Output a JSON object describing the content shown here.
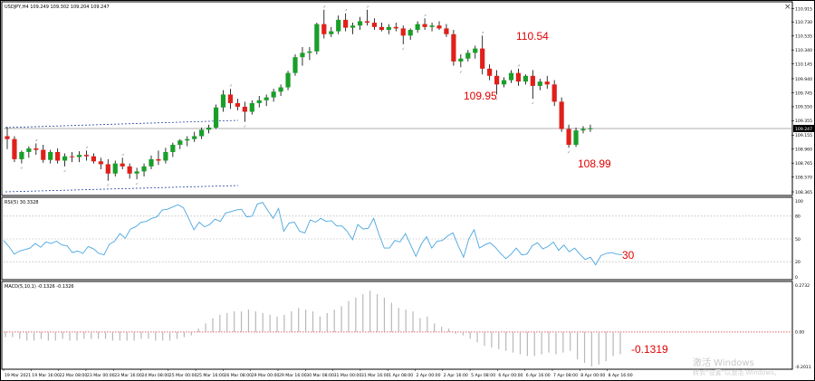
{
  "window": {
    "symbol_header": "USDJPY,H4  109.249 109.302 109.204 109.247",
    "close_button": "×"
  },
  "colors": {
    "bull": "#1a9e2a",
    "bear": "#e0201a",
    "wick": "#000000",
    "rsi_line": "#4aa6e0",
    "macd_hist": "#b8b8b8",
    "macd_signal": "#e03030",
    "annotation": "#e00000",
    "channel": "#2040a0",
    "price_line": "#909090",
    "level_dots": "#a0a0a0"
  },
  "chart_data": [
    {
      "type": "candlestick",
      "title": "USDJPY,H4",
      "ohlc_header": "109.249 109.302 109.204 109.247",
      "y_ticks": [
        "110.915",
        "110.730",
        "110.535",
        "110.340",
        "110.145",
        "109.940",
        "109.745",
        "109.550",
        "109.355",
        "109.247",
        "109.155",
        "108.960",
        "108.765",
        "108.570",
        "108.365"
      ],
      "current_price": "109.247",
      "ylim": [
        108.34,
        110.96
      ],
      "candles": [
        [
          109.14,
          109.27,
          108.96,
          109.1
        ],
        [
          109.1,
          109.14,
          108.78,
          108.82
        ],
        [
          108.82,
          108.94,
          108.76,
          108.92
        ],
        [
          108.92,
          109.0,
          108.84,
          108.97
        ],
        [
          108.97,
          109.04,
          108.88,
          108.95
        ],
        [
          108.95,
          109.02,
          108.77,
          108.81
        ],
        [
          108.81,
          108.95,
          108.76,
          108.92
        ],
        [
          108.92,
          108.97,
          108.76,
          108.8
        ],
        [
          108.8,
          108.9,
          108.72,
          108.86
        ],
        [
          108.86,
          108.92,
          108.78,
          108.85
        ],
        [
          108.85,
          108.93,
          108.78,
          108.88
        ],
        [
          108.88,
          108.94,
          108.8,
          108.86
        ],
        [
          108.86,
          108.9,
          108.76,
          108.79
        ],
        [
          108.79,
          108.84,
          108.68,
          108.75
        ],
        [
          108.75,
          108.82,
          108.52,
          108.62
        ],
        [
          108.62,
          108.8,
          108.58,
          108.76
        ],
        [
          108.76,
          108.84,
          108.68,
          108.72
        ],
        [
          108.72,
          108.76,
          108.55,
          108.62
        ],
        [
          108.62,
          108.7,
          108.54,
          108.65
        ],
        [
          108.65,
          108.76,
          108.58,
          108.72
        ],
        [
          108.72,
          108.87,
          108.68,
          108.82
        ],
        [
          108.82,
          108.94,
          108.74,
          108.8
        ],
        [
          108.8,
          108.98,
          108.76,
          108.92
        ],
        [
          108.92,
          109.05,
          108.85,
          109.02
        ],
        [
          109.02,
          109.1,
          108.96,
          109.08
        ],
        [
          109.08,
          109.14,
          109.0,
          109.1
        ],
        [
          109.1,
          109.2,
          109.06,
          109.14
        ],
        [
          109.14,
          109.26,
          109.1,
          109.23
        ],
        [
          109.23,
          109.3,
          109.18,
          109.26
        ],
        [
          109.26,
          109.58,
          109.24,
          109.54
        ],
        [
          109.54,
          109.78,
          109.48,
          109.72
        ],
        [
          109.72,
          109.8,
          109.52,
          109.6
        ],
        [
          109.6,
          109.66,
          109.5,
          109.55
        ],
        [
          109.55,
          109.62,
          109.34,
          109.48
        ],
        [
          109.48,
          109.64,
          109.44,
          109.6
        ],
        [
          109.6,
          109.7,
          109.54,
          109.64
        ],
        [
          109.64,
          109.72,
          109.56,
          109.68
        ],
        [
          109.68,
          109.8,
          109.62,
          109.76
        ],
        [
          109.76,
          109.86,
          109.7,
          109.82
        ],
        [
          109.82,
          110.05,
          109.78,
          110.02
        ],
        [
          110.02,
          110.28,
          109.98,
          110.24
        ],
        [
          110.24,
          110.38,
          110.12,
          110.3
        ],
        [
          110.3,
          110.38,
          110.2,
          110.32
        ],
        [
          110.32,
          110.72,
          110.28,
          110.7
        ],
        [
          110.7,
          110.9,
          110.5,
          110.56
        ],
        [
          110.56,
          110.66,
          110.52,
          110.6
        ],
        [
          110.6,
          110.82,
          110.56,
          110.76
        ],
        [
          110.76,
          110.85,
          110.6,
          110.65
        ],
        [
          110.65,
          110.72,
          110.56,
          110.68
        ],
        [
          110.68,
          110.8,
          110.62,
          110.74
        ],
        [
          110.74,
          110.9,
          110.68,
          110.72
        ],
        [
          110.72,
          110.78,
          110.62,
          110.66
        ],
        [
          110.66,
          110.72,
          110.6,
          110.62
        ],
        [
          110.62,
          110.7,
          110.56,
          110.66
        ],
        [
          110.66,
          110.72,
          110.6,
          110.64
        ],
        [
          110.64,
          110.68,
          110.42,
          110.54
        ],
        [
          110.54,
          110.64,
          110.48,
          110.62
        ],
        [
          110.62,
          110.74,
          110.58,
          110.7
        ],
        [
          110.7,
          110.78,
          110.62,
          110.66
        ],
        [
          110.66,
          110.72,
          110.6,
          110.68
        ],
        [
          110.68,
          110.74,
          110.62,
          110.64
        ],
        [
          110.64,
          110.7,
          110.52,
          110.56
        ],
        [
          110.56,
          110.62,
          110.12,
          110.18
        ],
        [
          110.18,
          110.28,
          110.1,
          110.22
        ],
        [
          110.22,
          110.34,
          110.18,
          110.3
        ],
        [
          110.3,
          110.4,
          110.22,
          110.36
        ],
        [
          110.36,
          110.54,
          110.0,
          110.08
        ],
        [
          110.08,
          110.14,
          109.92,
          109.98
        ],
        [
          109.98,
          110.06,
          109.72,
          109.86
        ],
        [
          109.86,
          109.96,
          109.82,
          109.92
        ],
        [
          109.92,
          110.06,
          109.88,
          110.02
        ],
        [
          110.02,
          110.08,
          109.84,
          109.9
        ],
        [
          109.9,
          110.0,
          109.86,
          109.98
        ],
        [
          109.98,
          110.06,
          109.66,
          109.84
        ],
        [
          109.84,
          109.94,
          109.78,
          109.9
        ],
        [
          109.9,
          109.98,
          109.8,
          109.86
        ],
        [
          109.86,
          109.92,
          109.56,
          109.62
        ],
        [
          109.62,
          109.68,
          109.2,
          109.24
        ],
        [
          109.24,
          109.3,
          108.98,
          109.02
        ],
        [
          109.02,
          109.26,
          108.99,
          109.22
        ],
        [
          109.22,
          109.28,
          109.18,
          109.24
        ],
        [
          109.24,
          109.3,
          109.2,
          109.25
        ]
      ]
    },
    {
      "type": "line",
      "title": "RSI(5) 30.3328",
      "y_ticks": [
        "100",
        "80",
        "50",
        "20",
        "0"
      ],
      "ylim": [
        0,
        100
      ],
      "levels": [
        80,
        50,
        20
      ],
      "values": [
        48,
        40,
        30,
        34,
        36,
        38,
        44,
        39,
        46,
        44,
        47,
        42,
        41,
        32,
        34,
        31,
        40,
        37,
        31,
        29,
        43,
        47,
        57,
        51,
        63,
        66,
        72,
        73,
        77,
        79,
        88,
        89,
        92,
        95,
        91,
        77,
        62,
        72,
        66,
        69,
        76,
        73,
        84,
        86,
        88,
        89,
        79,
        80,
        96,
        98,
        87,
        77,
        90,
        60,
        71,
        72,
        60,
        58,
        75,
        72,
        77,
        73,
        74,
        67,
        67,
        60,
        49,
        69,
        63,
        64,
        77,
        56,
        38,
        38,
        48,
        46,
        57,
        42,
        27,
        43,
        53,
        38,
        47,
        48,
        54,
        58,
        41,
        26,
        50,
        62,
        38,
        42,
        45,
        39,
        31,
        24,
        30,
        38,
        29,
        30,
        41,
        45,
        37,
        40,
        46,
        35,
        42,
        33,
        38,
        30,
        23,
        26,
        16,
        28,
        31,
        32,
        30,
        29
      ]
    },
    {
      "type": "bar",
      "title": "MACD(5,10,1) -0.1326 -0.1326",
      "y_ticks": [
        "0.2732",
        "0.00",
        "-0.2011"
      ],
      "ylim": [
        -0.2011,
        0.2732
      ],
      "values": [
        -0.03,
        -0.03,
        -0.04,
        -0.05,
        -0.05,
        -0.04,
        -0.05,
        -0.05,
        -0.04,
        -0.05,
        -0.05,
        -0.04,
        -0.04,
        -0.04,
        -0.04,
        -0.05,
        -0.05,
        -0.05,
        -0.05,
        -0.04,
        -0.04,
        -0.05,
        -0.05,
        -0.05,
        -0.04,
        -0.03,
        -0.02,
        0.02,
        0.05,
        0.08,
        0.1,
        0.11,
        0.12,
        0.12,
        0.13,
        0.12,
        0.11,
        0.1,
        0.09,
        0.1,
        0.12,
        0.14,
        0.13,
        0.12,
        0.09,
        0.11,
        0.13,
        0.15,
        0.18,
        0.2,
        0.22,
        0.24,
        0.22,
        0.2,
        0.17,
        0.14,
        0.13,
        0.12,
        0.08,
        0.09,
        0.05,
        0.03,
        0.02,
        -0.01,
        -0.02,
        -0.04,
        -0.06,
        -0.08,
        -0.09,
        -0.1,
        -0.11,
        -0.12,
        -0.13,
        -0.14,
        -0.14,
        -0.13,
        -0.12,
        -0.13,
        -0.12,
        -0.11,
        -0.16,
        -0.18,
        -0.2,
        -0.19,
        -0.17,
        -0.14,
        -0.13
      ]
    }
  ],
  "x_labels": [
    "19 Mar 2021",
    "19 Mar 16:00",
    "22 Mar 08:00",
    "23 Mar 00:00",
    "23 Mar 16:00",
    "24 Mar 08:00",
    "25 Mar 00:00",
    "25 Mar 16:00",
    "26 Mar 08:00",
    "29 Mar 00:00",
    "29 Mar 16:00",
    "30 Mar 08:00",
    "31 Mar 00:00",
    "31 Mar 16:00",
    "1 Apr 08:00",
    "2 Apr 00:00",
    "2 Apr 16:00",
    "5 Apr 08:00",
    "6 Apr 00:00",
    "6 Apr 16:00",
    "7 Apr 08:00",
    "8 Apr 00:00",
    "8 Apr 16:00"
  ],
  "annotations": {
    "high": "110.54",
    "low1": "109.95",
    "low2": "108.99",
    "rsi": "30",
    "macd": "-0.1319"
  },
  "watermark": {
    "line1": "激活 Windows",
    "line2": "转到“设置”以激活 Windows。"
  }
}
